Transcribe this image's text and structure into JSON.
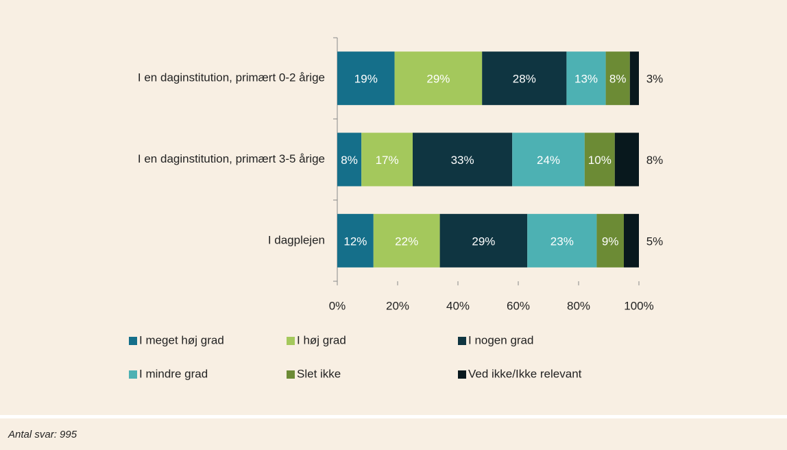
{
  "chart_data": {
    "type": "bar",
    "orientation": "horizontal",
    "stacked": true,
    "categories": [
      "I en daginstitution, primært 0-2 årige",
      "I en daginstitution, primært 3-5 årige",
      "I dagplejen"
    ],
    "series": [
      {
        "name": "I meget høj grad",
        "color": "#156f8a",
        "values": [
          19,
          8,
          12
        ],
        "value_labels": [
          "19%",
          "8%",
          "12%"
        ]
      },
      {
        "name": "I høj grad",
        "color": "#a4c85c",
        "values": [
          29,
          17,
          22
        ],
        "value_labels": [
          "29%",
          "17%",
          "22%"
        ]
      },
      {
        "name": "I nogen grad",
        "color": "#0f3541",
        "values": [
          28,
          33,
          29
        ],
        "value_labels": [
          "28%",
          "33%",
          "29%"
        ]
      },
      {
        "name": "I mindre grad",
        "color": "#4db1b3",
        "values": [
          13,
          24,
          23
        ],
        "value_labels": [
          "13%",
          "24%",
          "23%"
        ]
      },
      {
        "name": "Slet ikke",
        "color": "#6c8b35",
        "values": [
          8,
          10,
          9
        ],
        "value_labels": [
          "8%",
          "10%",
          "9%"
        ]
      },
      {
        "name": "Ved ikke/Ikke relevant",
        "color": "#08181d",
        "values": [
          3,
          8,
          5
        ],
        "value_labels": [
          "3%",
          "8%",
          "5%"
        ]
      }
    ],
    "xlim": [
      0,
      100
    ],
    "xticks": [
      {
        "value": 0,
        "label": "0%"
      },
      {
        "value": 20,
        "label": "20%"
      },
      {
        "value": 40,
        "label": "40%"
      },
      {
        "value": 60,
        "label": "60%"
      },
      {
        "value": 80,
        "label": "80%"
      },
      {
        "value": 100,
        "label": "100%"
      }
    ],
    "footnote": "Antal svar: 995"
  }
}
